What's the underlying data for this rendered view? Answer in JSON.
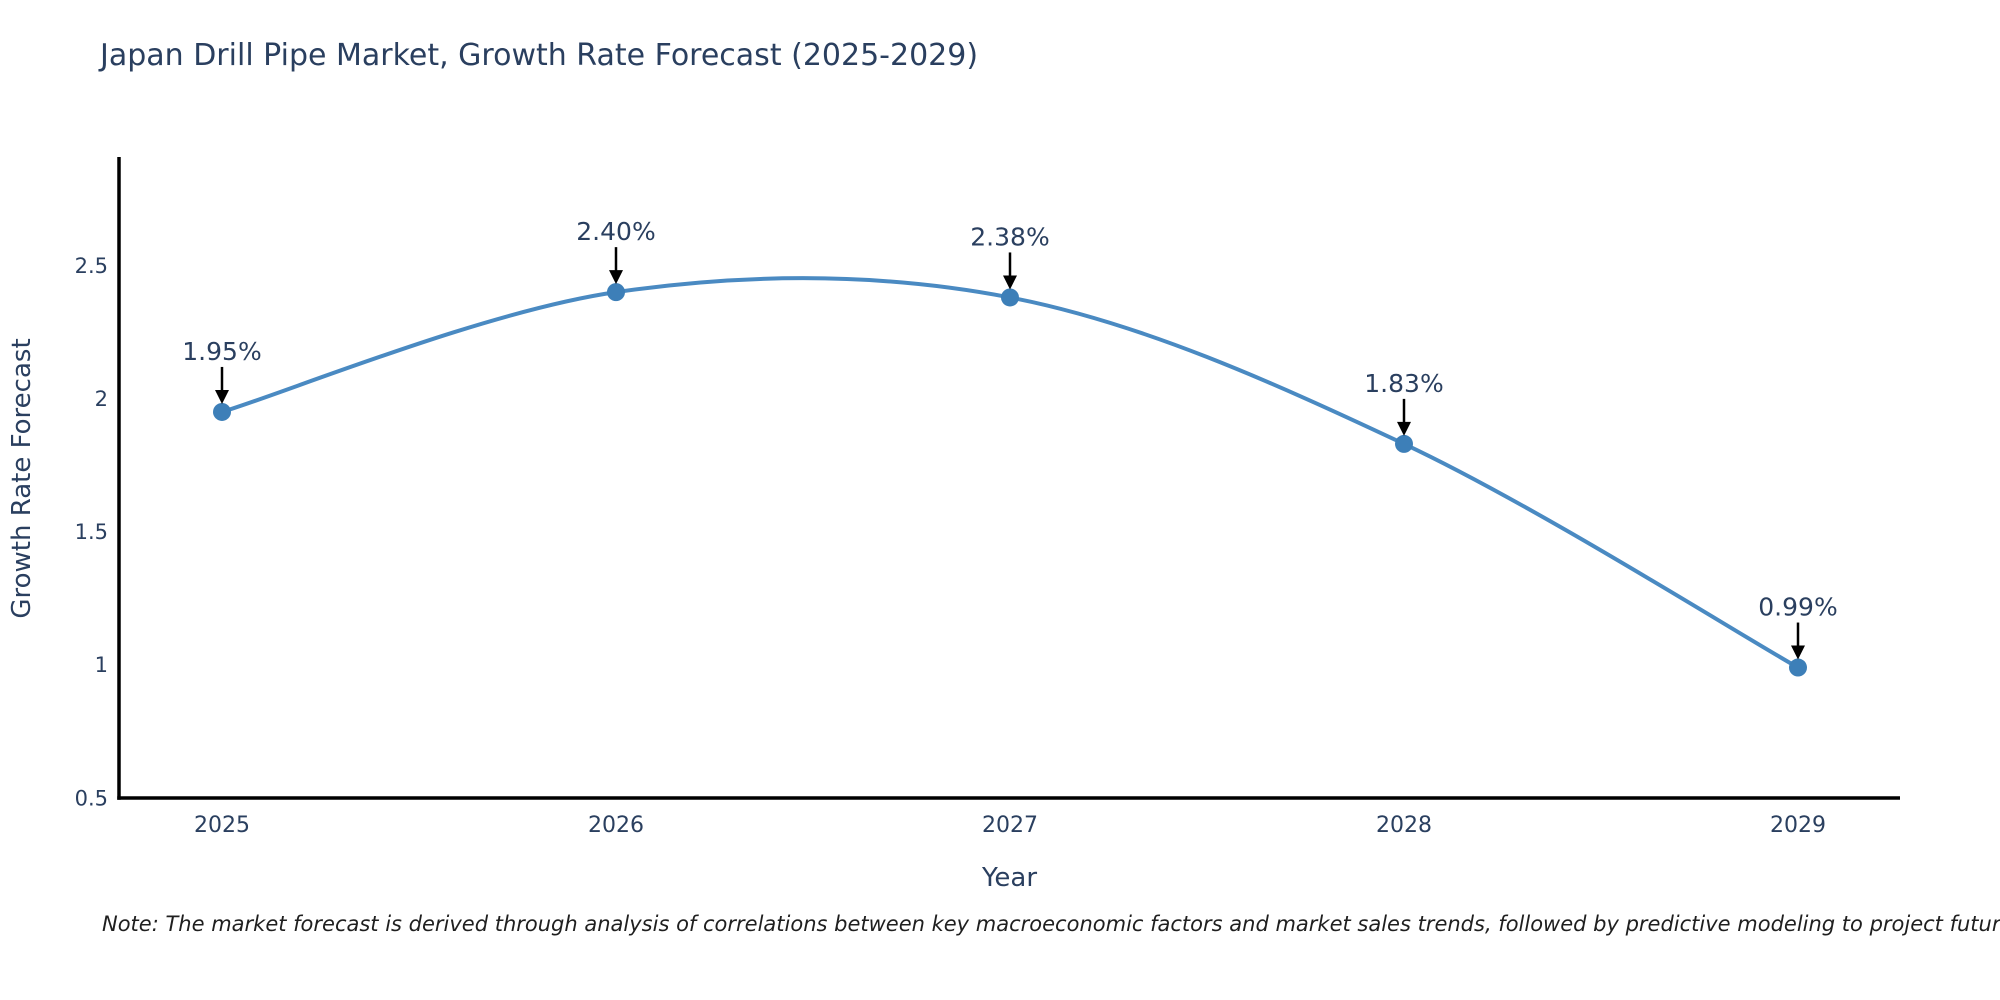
{
  "title": "Japan Drill Pipe Market, Growth Rate Forecast (2025-2029)",
  "note": "Note: The market forecast is derived through analysis of correlations between key macroeconomic factors and market sales trends, followed by predictive modeling to project future sales",
  "chart_data": {
    "type": "line",
    "title": "Japan Drill Pipe Market, Growth Rate Forecast (2025-2029)",
    "x": [
      2025,
      2026,
      2027,
      2028,
      2029
    ],
    "xtick_labels": [
      "2025",
      "2026",
      "2027",
      "2028",
      "2029"
    ],
    "series": [
      {
        "name": "Growth Rate Forecast",
        "values": [
          1.95,
          2.4,
          2.38,
          1.83,
          0.99
        ]
      }
    ],
    "point_labels": [
      "1.95%",
      "2.40%",
      "2.38%",
      "1.83%",
      "0.99%"
    ],
    "xlabel": "Year",
    "ylabel": "Growth Rate Forecast",
    "ylim": [
      0.5,
      2.9
    ],
    "yticks": [
      0.5,
      1,
      1.5,
      2,
      2.5
    ],
    "ytick_labels": [
      "0.5",
      "1",
      "1.5",
      "2",
      "2.5"
    ],
    "line_shape": "spline",
    "grid": false,
    "legend": "none",
    "annotation_style": "value-above-with-down-arrow",
    "colors": {
      "line": "#4a8ac2",
      "marker": "#3d7fb8",
      "text": "#2a3f5f",
      "axis": "#000000",
      "arrow": "#000000",
      "note_text": "#1f1f1f",
      "background": "#ffffff"
    }
  }
}
